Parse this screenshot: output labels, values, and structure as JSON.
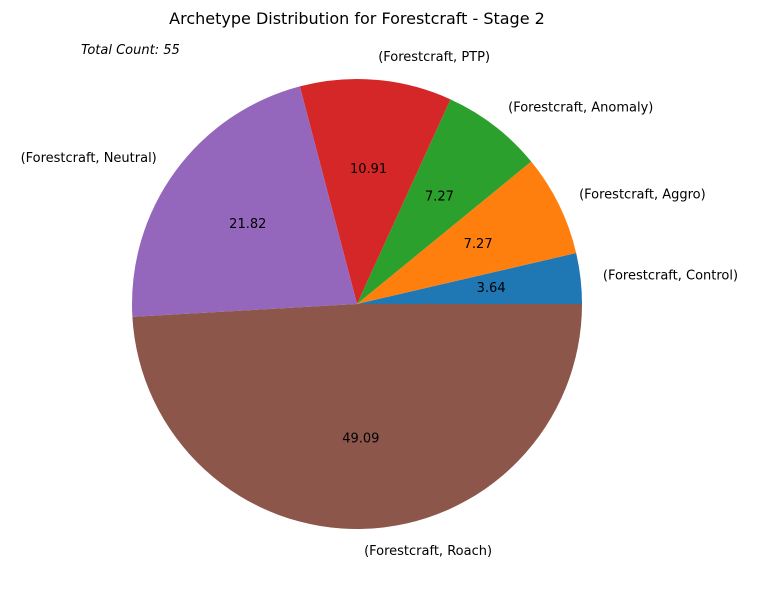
{
  "chart_data": {
    "type": "pie",
    "title": "Archetype Distribution for Forestcraft - Stage 2",
    "annotation": "Total Count: 55",
    "categories": [
      "(Forestcraft, Control)",
      "(Forestcraft, Aggro)",
      "(Forestcraft, Anomaly)",
      "(Forestcraft, PTP)",
      "(Forestcraft, Neutral)",
      "(Forestcraft, Roach)"
    ],
    "values": [
      3.64,
      7.27,
      7.27,
      10.91,
      21.82,
      49.09
    ],
    "value_labels": [
      "3.64",
      "7.27",
      "7.27",
      "10.91",
      "21.82",
      "49.09"
    ],
    "colors": [
      "#1f77b4",
      "#ff7f0e",
      "#2ca02c",
      "#d62728",
      "#9467bd",
      "#8c564b"
    ],
    "start_angle": 0,
    "direction": "counterclockwise"
  }
}
